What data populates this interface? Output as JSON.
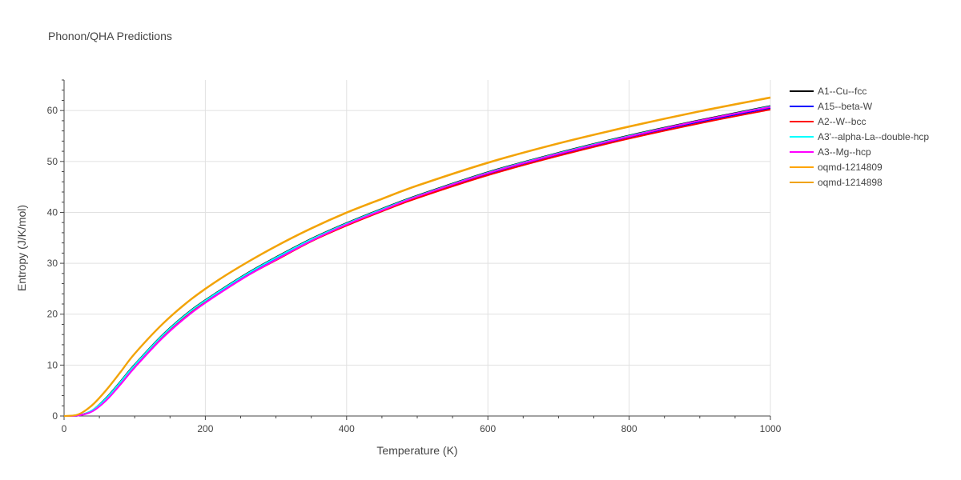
{
  "chart_data": {
    "type": "line",
    "title": "Phonon/QHA Predictions",
    "xlabel": "Temperature (K)",
    "ylabel": "Entropy (J/K/mol)",
    "xlim": [
      0,
      1000
    ],
    "ylim": [
      0,
      66
    ],
    "x_ticks": [
      0,
      200,
      400,
      600,
      800,
      1000
    ],
    "y_ticks": [
      0,
      10,
      20,
      30,
      40,
      50,
      60
    ],
    "grid": true,
    "legend_position": "right",
    "x": [
      0,
      20,
      40,
      60,
      80,
      100,
      140,
      180,
      220,
      260,
      300,
      350,
      400,
      450,
      500,
      600,
      700,
      800,
      900,
      1000
    ],
    "series": [
      {
        "name": "A1--Cu--fcc",
        "color": "#000000",
        "values": [
          0,
          0.1,
          1.1,
          3.6,
          6.8,
          10.1,
          16.0,
          20.8,
          24.6,
          28.1,
          31.2,
          34.8,
          37.9,
          40.7,
          43.3,
          47.9,
          51.7,
          55.1,
          58.1,
          60.9
        ]
      },
      {
        "name": "A15--beta-W",
        "color": "#0000ff",
        "values": [
          0,
          0.1,
          1.0,
          3.4,
          6.6,
          9.9,
          15.7,
          20.5,
          24.3,
          27.8,
          30.9,
          34.5,
          37.6,
          40.4,
          43.0,
          47.6,
          51.4,
          54.8,
          57.8,
          60.5
        ]
      },
      {
        "name": "A2--W--bcc",
        "color": "#ff0000",
        "values": [
          0,
          0.1,
          1.0,
          3.3,
          6.5,
          9.8,
          15.6,
          20.4,
          24.1,
          27.6,
          30.6,
          34.3,
          37.4,
          40.2,
          42.8,
          47.3,
          51.1,
          54.5,
          57.5,
          60.2
        ]
      },
      {
        "name": "A3'--alpha-La--double-hcp",
        "color": "#00ffff",
        "values": [
          0,
          0.1,
          1.1,
          3.5,
          6.7,
          10.0,
          15.9,
          20.7,
          24.5,
          28.0,
          31.1,
          34.7,
          37.8,
          40.6,
          43.2,
          47.8,
          51.6,
          55.0,
          58.0,
          60.8
        ]
      },
      {
        "name": "A3--Mg--hcp",
        "color": "#ff00ff",
        "values": [
          0,
          0.1,
          0.9,
          3.1,
          6.2,
          9.5,
          15.4,
          20.2,
          24.1,
          27.6,
          30.7,
          34.4,
          37.6,
          40.4,
          43.1,
          47.7,
          51.5,
          54.9,
          58.0,
          60.7
        ]
      },
      {
        "name": "oqmd-1214809",
        "color": "#ffa500",
        "values": [
          0,
          0.3,
          2.2,
          5.2,
          8.7,
          12.3,
          18.2,
          23.0,
          26.9,
          30.3,
          33.4,
          36.9,
          40.0,
          42.7,
          45.3,
          49.8,
          53.6,
          56.9,
          59.9,
          62.6
        ]
      },
      {
        "name": "oqmd-1214898",
        "color": "#f0a30a",
        "values": [
          0,
          0.3,
          2.1,
          5.1,
          8.6,
          12.2,
          18.1,
          22.9,
          26.8,
          30.2,
          33.3,
          36.8,
          39.9,
          42.6,
          45.2,
          49.7,
          53.5,
          56.8,
          59.8,
          62.5
        ]
      }
    ]
  }
}
